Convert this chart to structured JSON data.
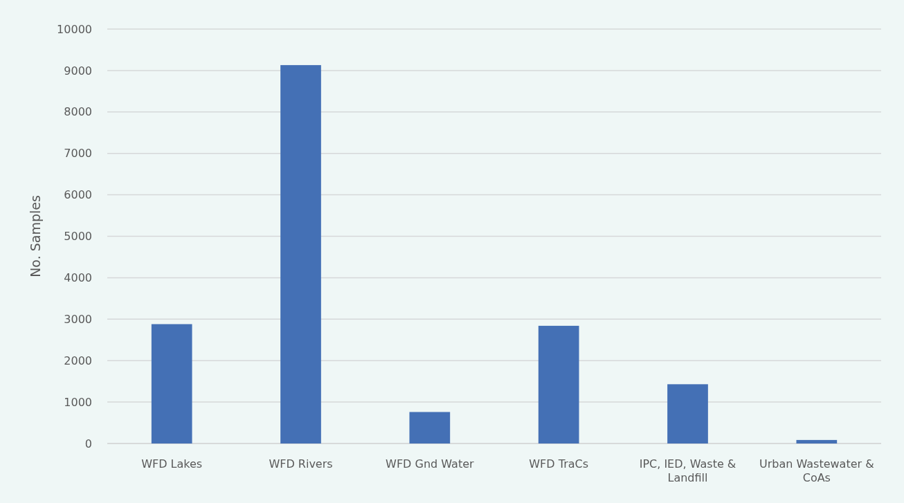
{
  "chart_data": {
    "type": "bar",
    "ylabel": "No. Samples",
    "categories": [
      "WFD Lakes",
      "WFD Rivers",
      "WFD Gnd Water",
      "WFD TraCs",
      "IPC, IED, Waste & Landfill",
      "Urban Wastewater & CoAs"
    ],
    "values": [
      2880,
      9130,
      760,
      2840,
      1430,
      85
    ],
    "color": "#4470b5",
    "ylim": [
      0,
      10000
    ],
    "yticks": [
      0,
      1000,
      2000,
      3000,
      4000,
      5000,
      6000,
      7000,
      8000,
      9000,
      10000
    ],
    "grid": "y"
  }
}
